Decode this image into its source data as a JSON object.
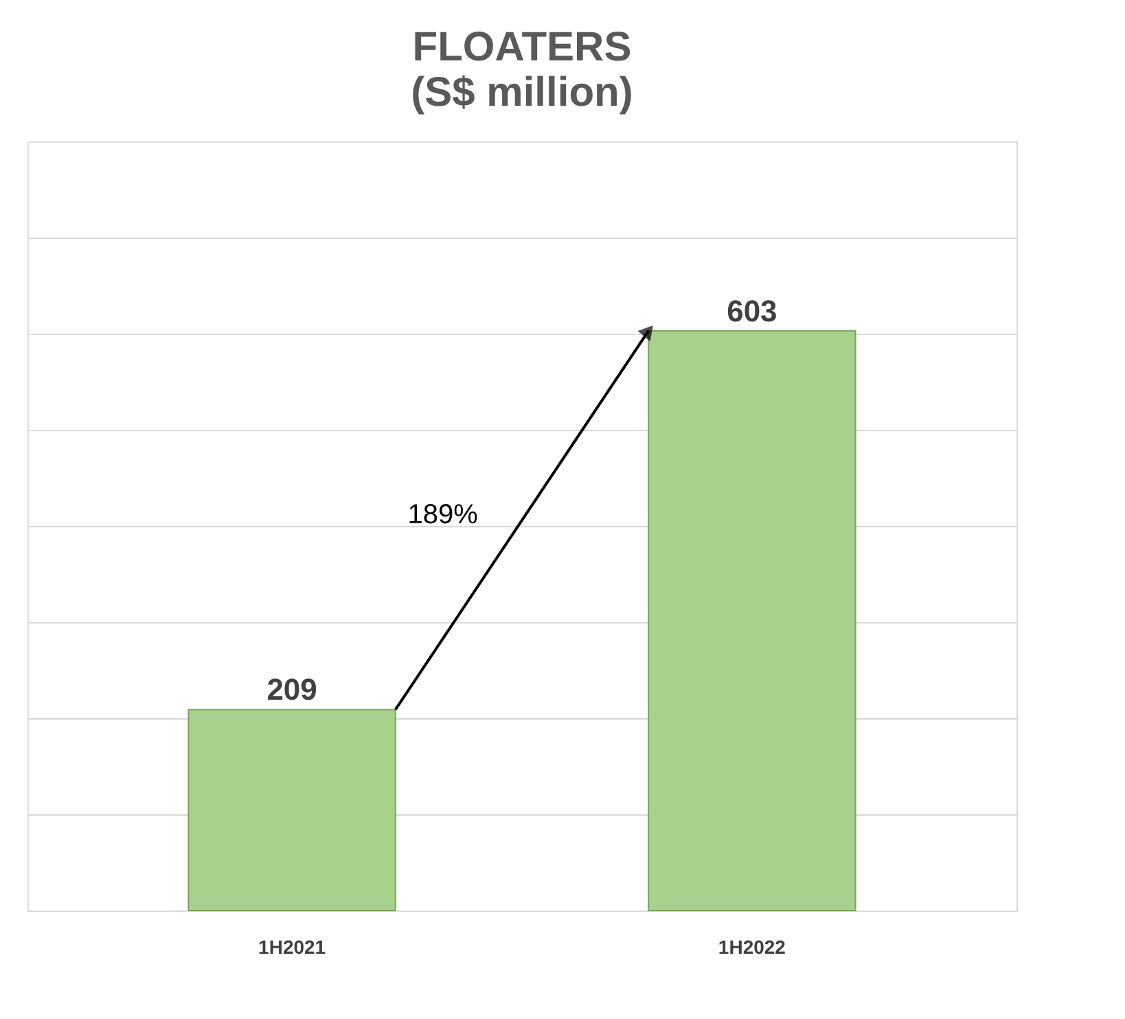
{
  "chart_data": {
    "type": "bar",
    "title": "FLOATERS",
    "subtitle": "(S$ million)",
    "categories": [
      "1H2021",
      "1H2022"
    ],
    "values": [
      209,
      603
    ],
    "color": "#a9d18e",
    "ylim": [
      0,
      800
    ],
    "yticks": [
      {
        "value": 0,
        "label": null
      },
      {
        "value": 100,
        "label": null
      },
      {
        "value": 200,
        "label": null
      },
      {
        "value": 300,
        "label": null
      },
      {
        "value": 400,
        "label": null
      },
      {
        "value": 500,
        "label": null
      },
      {
        "value": 600,
        "label": null
      },
      {
        "value": 700,
        "label": null
      },
      {
        "value": 800,
        "label": null
      }
    ],
    "grid": "y",
    "tick_labels": "x",
    "data_labels": true,
    "annotations": [
      "189%"
    ]
  }
}
